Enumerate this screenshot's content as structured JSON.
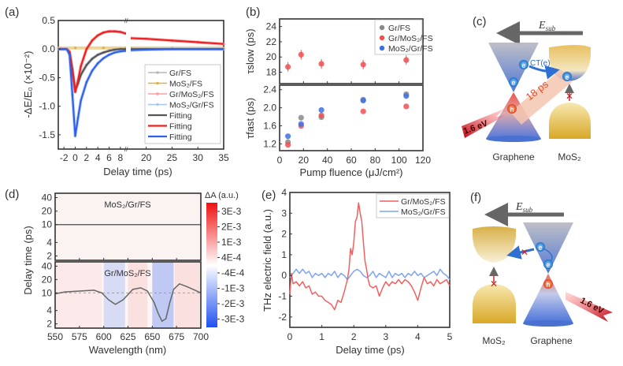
{
  "chart_data": [
    {
      "panel": "(a)",
      "type": "line",
      "xlabel": "Delay time (ps)",
      "ylabel": "-ΔE/E₀ (×10⁻²)",
      "xlim": [
        -3,
        35
      ],
      "x_break": [
        9,
        17
      ],
      "ylim": [
        -1.75,
        0.5
      ],
      "xticks": [
        "-2",
        "0",
        "2",
        "4",
        "6",
        "8",
        "20",
        "25",
        "30",
        "35"
      ],
      "yticks": [
        "0.5",
        "0.0",
        "-0.5",
        "-1.0",
        "-1.5"
      ],
      "legend": [
        "Gr/FS",
        "MoS₂/FS",
        "Gr/MoS₂/FS",
        "MoS₂/Gr/FS",
        "Fitting",
        "Fitting",
        "Fitting"
      ],
      "legend_position": "bottom-right",
      "series": [
        {
          "name": "Gr/FS",
          "color": "#a0a0a0",
          "x": [
            -3,
            -1.5,
            -1,
            -0.5,
            0,
            0.5,
            1,
            2,
            3,
            4,
            5,
            6,
            7,
            8,
            9,
            17,
            20,
            25,
            30,
            35
          ],
          "y": [
            0,
            0,
            -0.05,
            -0.35,
            -0.72,
            -0.6,
            -0.45,
            -0.28,
            -0.17,
            -0.1,
            -0.06,
            -0.03,
            -0.01,
            0,
            0,
            0,
            0,
            0,
            0,
            0
          ]
        },
        {
          "name": "MoS₂/FS",
          "color": "#e0b040",
          "x": [
            -3,
            0,
            5,
            9,
            17,
            25,
            35
          ],
          "y": [
            0.02,
            0.02,
            0.02,
            0.02,
            0.02,
            0.02,
            0.02
          ]
        },
        {
          "name": "Gr/MoS₂/FS",
          "color": "#f08080",
          "x": [
            -3,
            -1.5,
            -1,
            -0.5,
            0,
            0.5,
            1,
            2,
            3,
            4,
            5,
            6,
            7,
            8,
            9,
            17,
            20,
            25,
            30,
            35
          ],
          "y": [
            0,
            0,
            -0.05,
            -0.4,
            -0.75,
            -0.55,
            -0.3,
            0.0,
            0.15,
            0.24,
            0.29,
            0.31,
            0.31,
            0.3,
            0.27,
            0.19,
            0.18,
            0.15,
            0.12,
            0.09
          ]
        },
        {
          "name": "MoS₂/Gr/FS",
          "color": "#90b0f0",
          "x": [
            -3,
            -1.5,
            -1,
            -0.5,
            0,
            0.5,
            1,
            2,
            3,
            4,
            5,
            6,
            7,
            8,
            9,
            17,
            20,
            25,
            30,
            35
          ],
          "y": [
            0,
            0,
            -0.1,
            -0.8,
            -1.52,
            -1.2,
            -0.9,
            -0.58,
            -0.38,
            -0.25,
            -0.16,
            -0.1,
            -0.06,
            -0.04,
            -0.03,
            -0.02,
            -0.01,
            0,
            0,
            0
          ]
        },
        {
          "name": "Fitting (Gr/FS)",
          "color": "#555555",
          "x": [
            -3,
            -1.5,
            -1,
            -0.5,
            0,
            0.5,
            1,
            2,
            3,
            4,
            5,
            6,
            7,
            8,
            9,
            17,
            20,
            25,
            30,
            35
          ],
          "y": [
            0,
            0,
            -0.05,
            -0.35,
            -0.72,
            -0.6,
            -0.45,
            -0.28,
            -0.17,
            -0.1,
            -0.06,
            -0.03,
            -0.01,
            0,
            0,
            0,
            0,
            0,
            0,
            0
          ]
        },
        {
          "name": "Fitting (Gr/MoS₂/FS)",
          "color": "#ee2020",
          "x": [
            -3,
            -1.5,
            -1,
            -0.5,
            0,
            0.5,
            1,
            2,
            3,
            4,
            5,
            6,
            7,
            8,
            9,
            17,
            20,
            25,
            30,
            35
          ],
          "y": [
            0,
            0,
            -0.05,
            -0.4,
            -0.75,
            -0.55,
            -0.3,
            0.0,
            0.15,
            0.24,
            0.29,
            0.31,
            0.31,
            0.3,
            0.27,
            0.19,
            0.18,
            0.15,
            0.12,
            0.09
          ]
        },
        {
          "name": "Fitting (MoS₂/Gr/FS)",
          "color": "#3060f0",
          "x": [
            -3,
            -1.5,
            -1,
            -0.5,
            0,
            0.5,
            1,
            2,
            3,
            4,
            5,
            6,
            7,
            8,
            9,
            17,
            20,
            25,
            30,
            35
          ],
          "y": [
            0,
            0,
            -0.1,
            -0.8,
            -1.52,
            -1.2,
            -0.9,
            -0.58,
            -0.38,
            -0.25,
            -0.16,
            -0.1,
            -0.06,
            -0.04,
            -0.03,
            -0.02,
            -0.01,
            0,
            0,
            0
          ]
        }
      ]
    },
    {
      "panel": "(b)",
      "type": "scatter",
      "xlabel": "Pump fluence (μJ/cm²)",
      "xlim": [
        0,
        120
      ],
      "xticks": [
        "0",
        "20",
        "40",
        "60",
        "80",
        "100",
        "120"
      ],
      "upper": {
        "ylabel": "τslow (ps)",
        "ylim": [
          16.5,
          25
        ],
        "yticks": [
          "24",
          "22",
          "20",
          "18"
        ],
        "series": [
          {
            "name": "Gr/MoS₂/FS",
            "color": "#f05050",
            "x": [
              7,
              18,
              35,
              70,
              106
            ],
            "y": [
              18.7,
              20.3,
              19.1,
              19.0,
              19.6
            ]
          }
        ]
      },
      "lower": {
        "ylabel": "τfast (ps)",
        "ylim": [
          1.05,
          2.5
        ],
        "yticks": [
          "2.4",
          "2.0",
          "1.6",
          "1.2"
        ],
        "series": [
          {
            "name": "Gr/FS",
            "color": "#888888",
            "x": [
              7,
              18,
              35,
              70,
              106
            ],
            "y": [
              1.24,
              1.78,
              1.79,
              2.18,
              2.3
            ]
          },
          {
            "name": "Gr/MoS₂/FS",
            "color": "#f05050",
            "x": [
              7,
              18,
              35,
              70,
              106
            ],
            "y": [
              1.18,
              1.6,
              1.83,
              1.92,
              2.03
            ]
          },
          {
            "name": "MoS₂/Gr/FS",
            "color": "#4070e0",
            "x": [
              7,
              18,
              35,
              70,
              106
            ],
            "y": [
              1.37,
              1.64,
              1.95,
              2.16,
              2.26
            ]
          }
        ]
      },
      "legend": [
        "Gr/FS",
        "Gr/MoS₂/FS",
        "MoS₂/Gr/FS"
      ],
      "legend_position": "top-right"
    },
    {
      "panel": "(d)",
      "type": "heatmap",
      "xlabel": "Wavelength (nm)",
      "ylabel": "Delay time (ps)",
      "xlim": [
        550,
        700
      ],
      "xticks": [
        "550",
        "575",
        "600",
        "625",
        "650",
        "675",
        "700"
      ],
      "yticks": [
        "40",
        "20",
        "10",
        "4",
        "2"
      ],
      "yscale": "log",
      "ylim": [
        1.6,
        50
      ],
      "colorbar": {
        "title": "ΔA (a.u.)",
        "ticks": [
          "3E-3",
          "2E-3",
          "1E-3",
          "4E-4",
          "-4E-4",
          "-1E-3",
          "-2E-3",
          "-3E-3"
        ]
      },
      "upper": {
        "title": "MoS₂/Gr/FS",
        "trace_x": [
          550,
          575,
          600,
          625,
          650,
          675,
          700
        ],
        "trace_y": [
          10,
          10,
          10,
          10,
          10,
          10,
          10
        ]
      },
      "lower": {
        "title": "Gr/MoS₂/FS",
        "trace_x": [
          550,
          560,
          575,
          590,
          598,
          605,
          612,
          620,
          630,
          638,
          645,
          652,
          656,
          660,
          664,
          668,
          672,
          678,
          685,
          692,
          700
        ],
        "trace_y": [
          9.5,
          10.5,
          11,
          11.5,
          10,
          7,
          5.5,
          7,
          12,
          13,
          11,
          6,
          3.5,
          2.3,
          2.6,
          6,
          12,
          16,
          14,
          12,
          10
        ],
        "bands": [
          {
            "from": 550,
            "to": 598,
            "sign": "pos",
            "strength": 0.2
          },
          {
            "from": 600,
            "to": 622,
            "sign": "neg",
            "strength": 0.5
          },
          {
            "from": 625,
            "to": 645,
            "sign": "pos",
            "strength": 0.35
          },
          {
            "from": 650,
            "to": 672,
            "sign": "neg",
            "strength": 0.85
          },
          {
            "from": 673,
            "to": 700,
            "sign": "pos",
            "strength": 0.35
          }
        ]
      }
    },
    {
      "panel": "(e)",
      "type": "line",
      "xlabel": "Delay time (ps)",
      "ylabel": "THz electric field (a.u.)",
      "xlim": [
        0,
        5
      ],
      "ylim": [
        -2.5,
        4
      ],
      "xticks": [
        "0",
        "1",
        "2",
        "3",
        "4",
        "5"
      ],
      "yticks": [
        "4",
        "3",
        "2",
        "1",
        "0",
        "-1",
        "-2"
      ],
      "legend": [
        "Gr/MoS₂/FS",
        "MoS₂/Gr/FS"
      ],
      "legend_position": "top-right",
      "series": [
        {
          "name": "Gr/MoS₂/FS",
          "color": "#f06060",
          "x": [
            0,
            0.05,
            0.1,
            0.2,
            0.3,
            0.4,
            0.5,
            0.6,
            0.7,
            0.8,
            0.9,
            1.0,
            1.1,
            1.2,
            1.3,
            1.4,
            1.5,
            1.6,
            1.7,
            1.8,
            1.85,
            1.9,
            1.95,
            2.0,
            2.05,
            2.1,
            2.15,
            2.2,
            2.25,
            2.3,
            2.35,
            2.4,
            2.45,
            2.5,
            2.6,
            2.7,
            2.8,
            2.9,
            3.0,
            3.1,
            3.2,
            3.3,
            3.4,
            3.5,
            3.6,
            3.7,
            3.8,
            3.9,
            4.0,
            4.1,
            4.2,
            4.3,
            4.4,
            4.5,
            4.6,
            4.7,
            4.8,
            4.9,
            5.0
          ],
          "y": [
            -0.9,
            0.1,
            -0.4,
            -0.3,
            -0.5,
            -0.3,
            -0.6,
            -0.5,
            -0.9,
            -0.8,
            -1.0,
            -1.0,
            -1.2,
            -1.3,
            -1.4,
            -1.65,
            -1.2,
            -1.3,
            -0.8,
            -0.2,
            0.3,
            1.3,
            1.0,
            1.6,
            2.6,
            2.8,
            3.5,
            3.0,
            2.6,
            1.6,
            0.7,
            0.3,
            -0.2,
            -0.5,
            -0.6,
            -0.5,
            -1.0,
            -0.6,
            -0.3,
            -0.5,
            -0.3,
            -0.4,
            -0.2,
            -0.4,
            -0.2,
            -0.3,
            -0.5,
            -0.8,
            -1.2,
            -0.6,
            -0.1,
            -0.4,
            -0.3,
            -0.5,
            -0.2,
            -0.4,
            -0.3,
            -0.2,
            -0.5
          ]
        },
        {
          "name": "MoS₂/Gr/FS",
          "color": "#7fa4ee",
          "x": [
            0,
            0.1,
            0.2,
            0.3,
            0.4,
            0.5,
            0.6,
            0.7,
            0.8,
            0.9,
            1.0,
            1.1,
            1.2,
            1.3,
            1.4,
            1.5,
            1.6,
            1.7,
            1.8,
            1.9,
            2.0,
            2.1,
            2.2,
            2.3,
            2.4,
            2.5,
            2.6,
            2.7,
            2.8,
            2.9,
            3.0,
            3.1,
            3.2,
            3.3,
            3.4,
            3.5,
            3.6,
            3.7,
            3.8,
            3.9,
            4.0,
            4.1,
            4.2,
            4.3,
            4.4,
            4.5,
            4.6,
            4.7,
            4.8,
            4.9,
            5.0
          ],
          "y": [
            -0.1,
            0.1,
            0.3,
            0.1,
            0.3,
            0.1,
            0.2,
            -0.1,
            0.1,
            0,
            0.1,
            -0.1,
            0.1,
            0,
            0.2,
            -0.1,
            0.1,
            0,
            -0.2,
            0,
            0.2,
            0.3,
            0.2,
            0,
            -0.1,
            0,
            0.2,
            -0.1,
            0.1,
            0,
            -0.1,
            0.2,
            -0.1,
            0.1,
            0,
            0.1,
            -0.1,
            0.1,
            0,
            0.2,
            0,
            0.1,
            -0.1,
            0,
            0.1,
            0.2,
            0,
            0.3,
            0.1,
            0,
            -0.2
          ]
        }
      ]
    }
  ],
  "panels": {
    "a": {
      "label": "(a)"
    },
    "b": {
      "label": "(b)"
    },
    "c": {
      "label": "(c)",
      "field": "E",
      "field_sub": "sub",
      "left": "Graphene",
      "right": "MoS₂",
      "photon": "1.6 eV",
      "transfer": "CT(e)",
      "lifetime": "18 ps",
      "electron": "e",
      "hole": "h"
    },
    "d": {
      "label": "(d)"
    },
    "e": {
      "label": "(e)"
    },
    "f": {
      "label": "(f)",
      "field": "E",
      "field_sub": "sub",
      "left": "MoS₂",
      "right": "Graphene",
      "photon": "1.6 eV",
      "electron": "e",
      "hole": "h"
    }
  }
}
